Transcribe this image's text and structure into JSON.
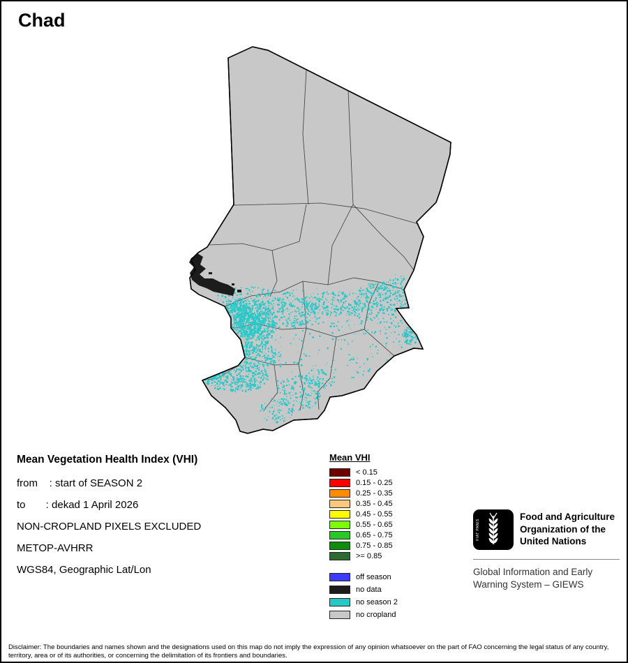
{
  "page": {
    "title": "Chad"
  },
  "map": {
    "country": "Chad"
  },
  "info": {
    "title": "Mean Vegetation Health Index (VHI)",
    "lines": [
      "from    : start of SEASON 2",
      "to       : dekad 1 April 2026",
      "NON-CROPLAND PIXELS EXCLUDED",
      "METOP-AVHRR",
      "WGS84, Geographic Lat/Lon"
    ]
  },
  "legend": {
    "title": "Mean VHI",
    "vhi_classes": [
      {
        "label": "< 0.15",
        "color": "#6E0000"
      },
      {
        "label": "0.15 - 0.25",
        "color": "#FF0000"
      },
      {
        "label": "0.25 - 0.35",
        "color": "#FF8C00"
      },
      {
        "label": "0.35 - 0.45",
        "color": "#FFC87D"
      },
      {
        "label": "0.45 - 0.55",
        "color": "#FFFF00"
      },
      {
        "label": "0.55 - 0.65",
        "color": "#7DFF00"
      },
      {
        "label": "0.65 - 0.75",
        "color": "#28C828"
      },
      {
        "label": "0.75 - 0.85",
        "color": "#0D8C0D"
      },
      {
        "label": ">= 0.85",
        "color": "#2F6B2F"
      }
    ],
    "other_classes": [
      {
        "label": "off season",
        "color": "#3B3BFF"
      },
      {
        "label": "no data",
        "color": "#1C1C1C"
      },
      {
        "label": "no season 2",
        "color": "#29C8C8"
      },
      {
        "label": "no cropland",
        "color": "#C8C8C8"
      }
    ]
  },
  "footer_org": {
    "logo_motto": "FIAT PANIS",
    "fao_name_lines": [
      "Food and Agriculture",
      "Organization of the",
      "United Nations"
    ],
    "giews_lines": [
      "Global Information and Early",
      "Warning System – GIEWS"
    ]
  },
  "disclaimer": "Disclaimer: The boundaries and names shown and the designations used on this map do not imply the expression of any opinion whatsoever on the part of FAO concerning the legal status of any country, territory, area or of its authorities, or concerning the delimitation of its frontiers and boundaries."
}
